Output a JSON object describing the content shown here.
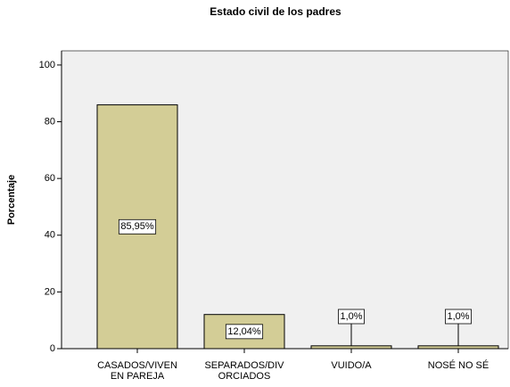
{
  "chart_data": {
    "type": "bar",
    "title": "Estado civil de los padres",
    "y_label": "Porcentaje",
    "categories": [
      [
        "CASADOS/VIVEN",
        "EN PAREJA"
      ],
      [
        "SEPARADOS/DIV",
        "ORCIADOS"
      ],
      [
        "VUIDO/A"
      ],
      [
        "NOSÉ NO SÉ"
      ]
    ],
    "values": [
      85.95,
      12.04,
      1.0,
      1.0
    ],
    "value_labels": [
      "85,95%",
      "12,04%",
      "1,0%",
      "1,0%"
    ],
    "color": "#d3cd96",
    "ylim": [
      0,
      105
    ],
    "yticks": [
      0,
      20,
      40,
      60,
      80,
      100
    ]
  }
}
